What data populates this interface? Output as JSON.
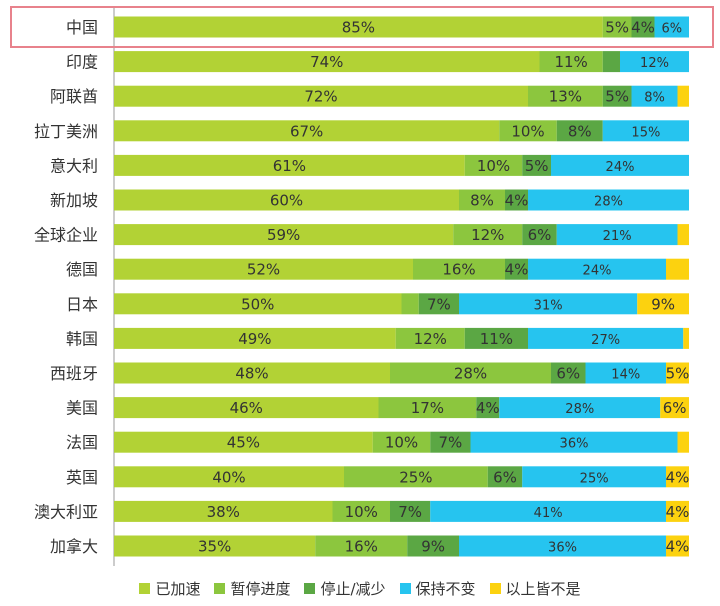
{
  "chart_data": {
    "type": "bar",
    "orientation": "horizontal",
    "stacked": true,
    "categories": [
      "中国",
      "印度",
      "阿联酋",
      "拉丁美洲",
      "意大利",
      "新加坡",
      "全球企业",
      "德国",
      "日本",
      "韩国",
      "西班牙",
      "美国",
      "法国",
      "英国",
      "澳大利亚",
      "加拿大"
    ],
    "highlighted_category": "中国",
    "highlight_color": "#e8828c",
    "xlim": [
      0,
      100
    ],
    "series": [
      {
        "name": "已加速",
        "color": "#b2d235",
        "values": [
          85,
          74,
          72,
          67,
          61,
          60,
          59,
          52,
          50,
          49,
          48,
          46,
          45,
          40,
          38,
          35
        ],
        "labels": [
          "85%",
          "74%",
          "72%",
          "67%",
          "61%",
          "60%",
          "59%",
          "52%",
          "50%",
          "49%",
          "48%",
          "46%",
          "45%",
          "40%",
          "38%",
          "35%"
        ]
      },
      {
        "name": "暂停进度",
        "color": "#8cc63e",
        "values": [
          5,
          11,
          13,
          10,
          10,
          8,
          12,
          16,
          3,
          12,
          28,
          17,
          10,
          25,
          10,
          16
        ],
        "labels": [
          "5%",
          "11%",
          "13%",
          "10%",
          "10%",
          "8%",
          "12%",
          "16%",
          "",
          "12%",
          "28%",
          "17%",
          "10%",
          "25%",
          "10%",
          "16%"
        ]
      },
      {
        "name": "停止/减少",
        "color": "#5ba744",
        "values": [
          4,
          3,
          5,
          8,
          5,
          4,
          6,
          4,
          7,
          11,
          6,
          4,
          7,
          6,
          7,
          9
        ],
        "labels": [
          "4%",
          "",
          "5%",
          "8%",
          "5%",
          "4%",
          "6%",
          "4%",
          "7%",
          "11%",
          "6%",
          "4%",
          "7%",
          "6%",
          "7%",
          "9%"
        ]
      },
      {
        "name": "保持不变",
        "color": "#26c4ef",
        "values": [
          6,
          12,
          8,
          15,
          24,
          28,
          21,
          24,
          31,
          27,
          14,
          28,
          36,
          25,
          41,
          36
        ],
        "labels": [
          "6%",
          "12%",
          "8%",
          "15%",
          "24%",
          "28%",
          "21%",
          "24%",
          "31%",
          "27%",
          "14%",
          "28%",
          "36%",
          "25%",
          "41%",
          "36%"
        ]
      },
      {
        "name": "以上皆不是",
        "color": "#fcd20f",
        "values": [
          0,
          0,
          2,
          0,
          0,
          0,
          2,
          4,
          9,
          1,
          5,
          6,
          2,
          4,
          4,
          4
        ],
        "labels": [
          "",
          "",
          "",
          "",
          "",
          "",
          "",
          "",
          "9%",
          "",
          "5%",
          "6%",
          "",
          "4%",
          "4%",
          "4%"
        ]
      }
    ]
  }
}
